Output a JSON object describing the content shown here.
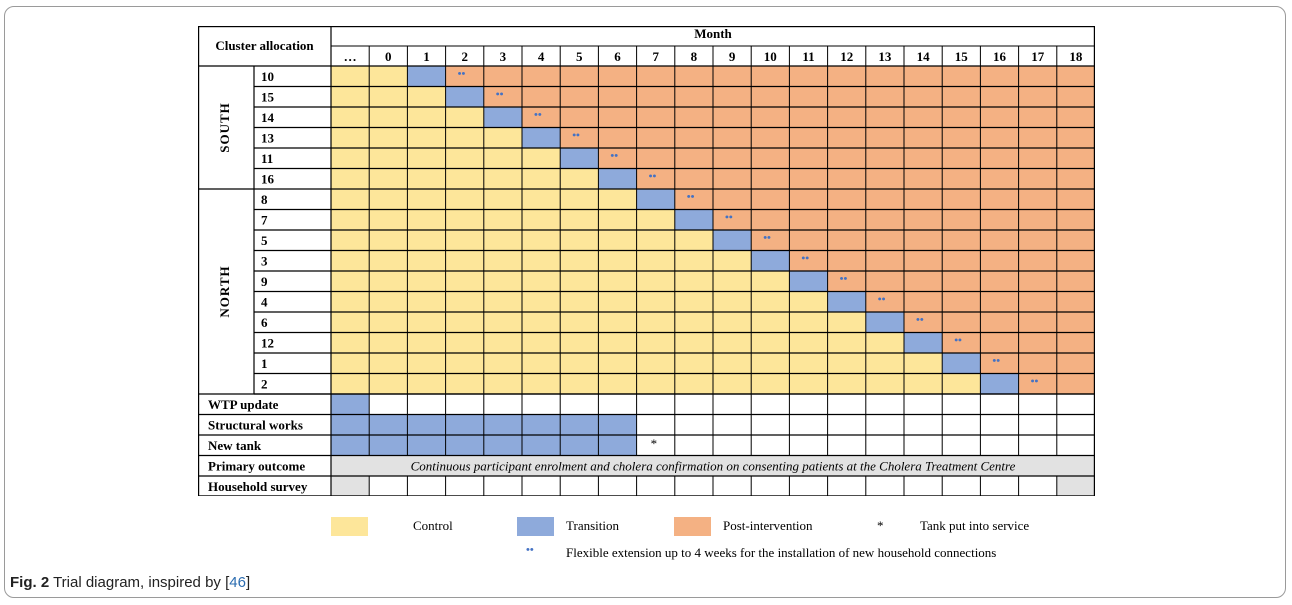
{
  "header": {
    "cluster_allocation": "Cluster allocation",
    "month": "Month",
    "months": [
      "…",
      "0",
      "1",
      "2",
      "3",
      "4",
      "5",
      "6",
      "7",
      "8",
      "9",
      "10",
      "11",
      "12",
      "13",
      "14",
      "15",
      "16",
      "17",
      "18"
    ]
  },
  "regions": [
    {
      "name": "SOUTH",
      "clusters": [
        "10",
        "15",
        "14",
        "13",
        "11",
        "16"
      ]
    },
    {
      "name": "NORTH",
      "clusters": [
        "8",
        "7",
        "5",
        "3",
        "9",
        "4",
        "6",
        "12",
        "1",
        "2"
      ]
    }
  ],
  "transition_month_first": "1",
  "activities": [
    {
      "label": "WTP update",
      "filled_months": [
        "…"
      ]
    },
    {
      "label": "Structural works",
      "filled_months": [
        "…",
        "0",
        "1",
        "2",
        "3",
        "4",
        "5",
        "6"
      ]
    },
    {
      "label": "New tank",
      "filled_months": [
        "…",
        "0",
        "1",
        "2",
        "3",
        "4",
        "5",
        "6"
      ],
      "star_month": "7"
    },
    {
      "label": "Primary outcome",
      "text": "Continuous participant enrolment and cholera confirmation on consenting patients at the Cholera Treatment Centre"
    },
    {
      "label": "Household survey",
      "gray_months": [
        "…",
        "18"
      ]
    }
  ],
  "symbols": {
    "star": "*",
    "dots": "••"
  },
  "legend": {
    "control": "Control",
    "transition": "Transition",
    "post": "Post-intervention",
    "tank": "Tank put into service",
    "flex": "Flexible extension up to 4 weeks for the installation of new household connections"
  },
  "colors": {
    "control": "#fde69a",
    "transition": "#8eaadb",
    "post": "#f4b183",
    "gray": "#e2e2e2",
    "dots": "#4472c4"
  },
  "caption": {
    "fig": "Fig. 2",
    "text": " Trial diagram, inspired by [",
    "ref": "46",
    "end": "]"
  }
}
